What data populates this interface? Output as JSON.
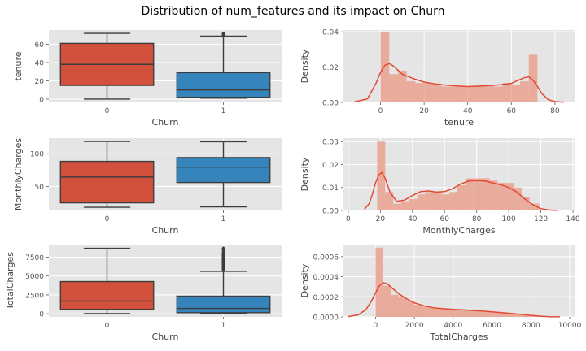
{
  "figure": {
    "suptitle": "Distribution of num_features and its impact on Churn"
  },
  "colors": {
    "plot_bg": "#E5E5E5",
    "grid": "#FFFFFF",
    "box_churn_0": "#D1513C",
    "box_churn_1": "#3585BC",
    "hist": "#E8A898",
    "kde": "#E24A33",
    "text": "#555555",
    "label": "#444444"
  },
  "chart_data": [
    {
      "type": "box",
      "xlabel": "Churn",
      "ylabel": "tenure",
      "categories": [
        "0",
        "1"
      ],
      "yticks": [
        0,
        20,
        40,
        60
      ],
      "ylim": [
        -3.6,
        75.6
      ],
      "boxes": [
        {
          "category": "0",
          "whislo": 0,
          "q1": 15,
          "median": 38,
          "q3": 61,
          "whishi": 72,
          "fliers": []
        },
        {
          "category": "1",
          "whislo": 1,
          "q1": 2,
          "median": 10,
          "q3": 29,
          "whishi": 69,
          "fliers": [
            70,
            71,
            71.5,
            72
          ]
        }
      ]
    },
    {
      "type": "bar",
      "subtype": "histogram+kde",
      "xlabel": "tenure",
      "ylabel": "Density",
      "xticks": [
        0,
        20,
        40,
        60,
        80
      ],
      "yticks": [
        0.0,
        0.02,
        0.04
      ],
      "ytick_labels": [
        "0.00",
        "0.02",
        "0.04"
      ],
      "xlim": [
        -17,
        89
      ],
      "ylim": [
        0,
        0.041
      ],
      "bins": [
        {
          "x0": 0,
          "x1": 4,
          "y": 0.04
        },
        {
          "x0": 4,
          "x1": 8,
          "y": 0.016
        },
        {
          "x0": 8,
          "x1": 12,
          "y": 0.018
        },
        {
          "x0": 12,
          "x1": 16,
          "y": 0.012
        },
        {
          "x0": 16,
          "x1": 20,
          "y": 0.011
        },
        {
          "x0": 20,
          "x1": 24,
          "y": 0.011
        },
        {
          "x0": 24,
          "x1": 28,
          "y": 0.01
        },
        {
          "x0": 28,
          "x1": 32,
          "y": 0.009
        },
        {
          "x0": 32,
          "x1": 36,
          "y": 0.009
        },
        {
          "x0": 36,
          "x1": 40,
          "y": 0.009
        },
        {
          "x0": 40,
          "x1": 44,
          "y": 0.009
        },
        {
          "x0": 44,
          "x1": 48,
          "y": 0.01
        },
        {
          "x0": 48,
          "x1": 52,
          "y": 0.01
        },
        {
          "x0": 52,
          "x1": 56,
          "y": 0.009
        },
        {
          "x0": 56,
          "x1": 60,
          "y": 0.011
        },
        {
          "x0": 60,
          "x1": 64,
          "y": 0.01
        },
        {
          "x0": 64,
          "x1": 68,
          "y": 0.012
        },
        {
          "x0": 68,
          "x1": 72,
          "y": 0.027
        }
      ],
      "kde": {
        "x": [
          -12,
          -6,
          -2,
          0,
          2,
          4,
          6,
          10,
          15,
          20,
          25,
          30,
          35,
          40,
          45,
          50,
          55,
          60,
          63,
          66,
          68,
          70,
          72,
          74,
          77,
          80,
          84
        ],
        "y": [
          0.0003,
          0.002,
          0.011,
          0.017,
          0.021,
          0.022,
          0.0205,
          0.016,
          0.0135,
          0.0115,
          0.0105,
          0.0098,
          0.0093,
          0.009,
          0.0092,
          0.0096,
          0.01,
          0.0108,
          0.0125,
          0.014,
          0.0145,
          0.0125,
          0.009,
          0.005,
          0.0015,
          0.0005,
          0.0001
        ]
      }
    },
    {
      "type": "box",
      "xlabel": "Churn",
      "ylabel": "MonthlyCharges",
      "categories": [
        "0",
        "1"
      ],
      "yticks": [
        50,
        100
      ],
      "ylim": [
        13.3,
        123.9
      ],
      "boxes": [
        {
          "category": "0",
          "whislo": 18.2,
          "q1": 25,
          "median": 64.4,
          "q3": 88.4,
          "whishi": 118.8,
          "fliers": []
        },
        {
          "category": "1",
          "whislo": 18.8,
          "q1": 56,
          "median": 79.6,
          "q3": 94.2,
          "whishi": 118.4,
          "fliers": []
        }
      ]
    },
    {
      "type": "bar",
      "subtype": "histogram+kde",
      "xlabel": "MonthlyCharges",
      "ylabel": "Density",
      "xticks": [
        0,
        20,
        40,
        60,
        80,
        100,
        120,
        140
      ],
      "yticks": [
        0.0,
        0.01,
        0.02,
        0.03
      ],
      "ytick_labels": [
        "0.00",
        "0.01",
        "0.02",
        "0.03"
      ],
      "xlim": [
        -3,
        141
      ],
      "ylim": [
        0,
        0.0315
      ],
      "bins": [
        {
          "x0": 18,
          "x1": 23,
          "y": 0.03
        },
        {
          "x0": 23,
          "x1": 28,
          "y": 0.008
        },
        {
          "x0": 28,
          "x1": 33,
          "y": 0.003
        },
        {
          "x0": 33,
          "x1": 38,
          "y": 0.004
        },
        {
          "x0": 38,
          "x1": 43,
          "y": 0.005
        },
        {
          "x0": 43,
          "x1": 48,
          "y": 0.007
        },
        {
          "x0": 48,
          "x1": 53,
          "y": 0.008
        },
        {
          "x0": 53,
          "x1": 58,
          "y": 0.008
        },
        {
          "x0": 58,
          "x1": 63,
          "y": 0.007
        },
        {
          "x0": 63,
          "x1": 68,
          "y": 0.008
        },
        {
          "x0": 68,
          "x1": 73,
          "y": 0.011
        },
        {
          "x0": 73,
          "x1": 78,
          "y": 0.014
        },
        {
          "x0": 78,
          "x1": 83,
          "y": 0.014
        },
        {
          "x0": 83,
          "x1": 88,
          "y": 0.014
        },
        {
          "x0": 88,
          "x1": 93,
          "y": 0.013
        },
        {
          "x0": 93,
          "x1": 98,
          "y": 0.012
        },
        {
          "x0": 98,
          "x1": 103,
          "y": 0.012
        },
        {
          "x0": 103,
          "x1": 108,
          "y": 0.01
        },
        {
          "x0": 108,
          "x1": 113,
          "y": 0.006
        },
        {
          "x0": 113,
          "x1": 119,
          "y": 0.003
        }
      ],
      "kde": {
        "x": [
          10,
          13,
          15,
          17,
          19,
          21,
          23,
          26,
          30,
          35,
          40,
          45,
          50,
          55,
          60,
          65,
          70,
          75,
          80,
          85,
          90,
          95,
          100,
          105,
          110,
          115,
          120,
          125,
          130
        ],
        "y": [
          0.0005,
          0.003,
          0.007,
          0.012,
          0.0155,
          0.0165,
          0.014,
          0.008,
          0.004,
          0.0045,
          0.0065,
          0.0082,
          0.0085,
          0.008,
          0.0082,
          0.0095,
          0.0115,
          0.0128,
          0.013,
          0.0128,
          0.012,
          0.0112,
          0.01,
          0.008,
          0.005,
          0.0025,
          0.0008,
          0.0002,
          5e-05
        ]
      }
    },
    {
      "type": "box",
      "xlabel": "Churn",
      "ylabel": "TotalCharges",
      "categories": [
        "0",
        "1"
      ],
      "yticks": [
        0,
        2500,
        5000,
        7500
      ],
      "ytick_labels": [
        "0",
        "2500",
        "5000",
        "7500"
      ],
      "ylim": [
        -420,
        9170
      ],
      "boxes": [
        {
          "category": "0",
          "whislo": 18.8,
          "q1": 578,
          "median": 1683,
          "q3": 4265,
          "whishi": 8672,
          "fliers": []
        },
        {
          "category": "1",
          "whislo": 18.9,
          "q1": 134,
          "median": 704,
          "q3": 2331,
          "whishi": 5625,
          "fliers": [
            5700,
            5800,
            5900,
            6000,
            6100,
            6200,
            6300,
            6400,
            6500,
            6600,
            6700,
            6800,
            6900,
            7000,
            7100,
            7200,
            7300,
            7400,
            7500,
            7600,
            7700,
            7800,
            7900,
            8000,
            8100,
            8300,
            8500,
            8700
          ]
        }
      ]
    },
    {
      "type": "bar",
      "subtype": "histogram+kde",
      "xlabel": "TotalCharges",
      "ylabel": "Density",
      "xticks": [
        0,
        2000,
        4000,
        6000,
        8000,
        10000
      ],
      "yticks": [
        0,
        0.0002,
        0.0004,
        0.0006
      ],
      "ytick_labels": [
        "0.0000",
        "0.0002",
        "0.0004",
        "0.0006"
      ],
      "xlim": [
        -1650,
        10250
      ],
      "ylim": [
        0,
        0.00072
      ],
      "bins": [
        {
          "x0": 0,
          "x1": 400,
          "y": 0.00069
        },
        {
          "x0": 400,
          "x1": 800,
          "y": 0.00031
        },
        {
          "x0": 800,
          "x1": 1200,
          "y": 0.00022
        },
        {
          "x0": 1200,
          "x1": 1600,
          "y": 0.0002
        },
        {
          "x0": 1600,
          "x1": 2000,
          "y": 0.00016
        },
        {
          "x0": 2000,
          "x1": 2400,
          "y": 0.00012
        },
        {
          "x0": 2400,
          "x1": 2800,
          "y": 0.0001
        },
        {
          "x0": 2800,
          "x1": 3200,
          "y": 9e-05
        },
        {
          "x0": 3200,
          "x1": 3600,
          "y": 8e-05
        },
        {
          "x0": 3600,
          "x1": 4000,
          "y": 8e-05
        },
        {
          "x0": 4000,
          "x1": 4400,
          "y": 7e-05
        },
        {
          "x0": 4400,
          "x1": 4800,
          "y": 7e-05
        },
        {
          "x0": 4800,
          "x1": 5200,
          "y": 6e-05
        },
        {
          "x0": 5200,
          "x1": 5600,
          "y": 6e-05
        },
        {
          "x0": 5600,
          "x1": 6000,
          "y": 5e-05
        },
        {
          "x0": 6000,
          "x1": 6400,
          "y": 5e-05
        },
        {
          "x0": 6400,
          "x1": 6800,
          "y": 4e-05
        },
        {
          "x0": 6800,
          "x1": 7200,
          "y": 4e-05
        },
        {
          "x0": 7200,
          "x1": 7600,
          "y": 3e-05
        },
        {
          "x0": 7600,
          "x1": 8000,
          "y": 2e-05
        },
        {
          "x0": 8000,
          "x1": 8700,
          "y": 1e-05
        }
      ],
      "kde": {
        "x": [
          -1400,
          -900,
          -500,
          -200,
          0,
          200,
          400,
          600,
          900,
          1200,
          1600,
          2000,
          2500,
          3000,
          3500,
          4000,
          4500,
          5000,
          5500,
          6000,
          6500,
          7000,
          7500,
          8000,
          8500,
          9000,
          9500
        ],
        "y": [
          3e-06,
          2e-05,
          7e-05,
          0.00016,
          0.00024,
          0.00031,
          0.00034,
          0.00033,
          0.00028,
          0.00023,
          0.00018,
          0.00014,
          0.00011,
          9e-05,
          8.2e-05,
          7.5e-05,
          7e-05,
          6.4e-05,
          5.8e-05,
          5e-05,
          4.2e-05,
          3.4e-05,
          2.5e-05,
          1.5e-05,
          7e-06,
          2e-06,
          1e-06
        ]
      }
    }
  ]
}
